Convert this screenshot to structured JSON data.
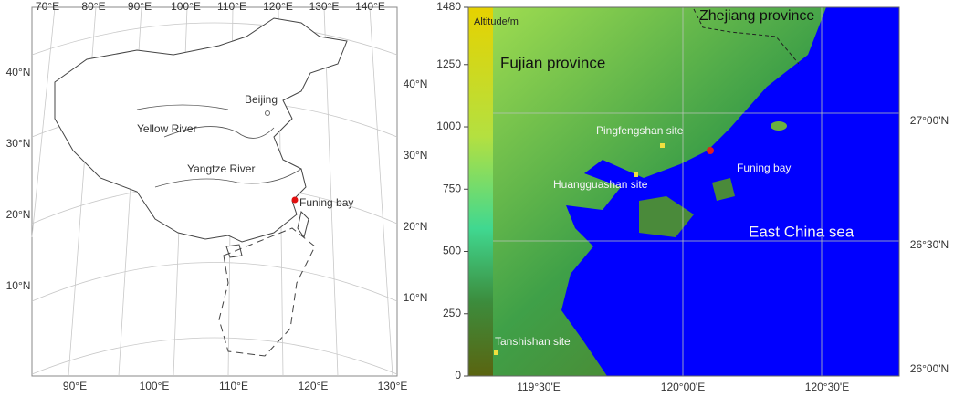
{
  "left_map": {
    "top_lon_labels": [
      "70°E",
      "80°E",
      "90°E",
      "100°E",
      "110°E",
      "120°E",
      "130°E",
      "140°E"
    ],
    "bottom_lon_labels": [
      "90°E",
      "100°E",
      "110°E",
      "120°E",
      "130°E"
    ],
    "left_lat_labels": [
      "40°N",
      "30°N",
      "20°N",
      "10°N"
    ],
    "right_lat_labels": [
      "40°N",
      "30°N",
      "20°N",
      "10°N"
    ],
    "places": [
      "Beijing",
      "Yellow River",
      "Yangtze River",
      "Funing bay"
    ]
  },
  "right_map": {
    "colorbar": {
      "title": "Altitude/m",
      "lim": [
        0,
        1480
      ],
      "ticks": [
        0,
        250,
        500,
        750,
        1000,
        1250,
        1480
      ]
    },
    "places": [
      "Fujian province",
      "Zhejiang province",
      "Pingfengshan site",
      "Huangguashan site",
      "Funing bay",
      "East China sea",
      "Tanshishan site"
    ],
    "lat_labels": [
      "27°00'N",
      "26°30'N",
      "26°00'N"
    ],
    "lon_labels": [
      "119°30'E",
      "120°00'E",
      "120°30'E"
    ]
  }
}
